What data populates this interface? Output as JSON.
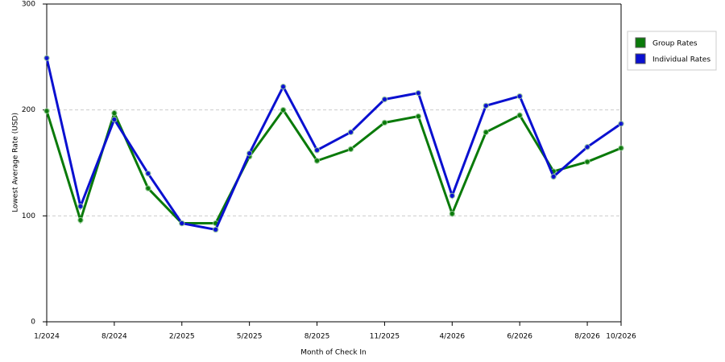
{
  "chart_data": {
    "type": "line",
    "x_label": "Month of Check In",
    "y_label": "Lowest Average Rate (USD)",
    "categories": [
      "1/2024",
      null,
      "8/2024",
      null,
      "2/2025",
      null,
      "5/2025",
      null,
      "8/2025",
      null,
      "11/2025",
      null,
      "4/2026",
      null,
      "6/2026",
      null,
      "8/2026",
      "10/2026"
    ],
    "series": [
      {
        "name": "Group Rates",
        "color": "#0a7a0a",
        "values": [
          199,
          96,
          197,
          126,
          93,
          93,
          156,
          200,
          152,
          163,
          188,
          194,
          102,
          179,
          195,
          142,
          151,
          164
        ]
      },
      {
        "name": "Individual Rates",
        "color": "#0a10d0",
        "values": [
          249,
          109,
          191,
          140,
          93,
          87,
          159,
          222,
          162,
          179,
          210,
          216,
          119,
          204,
          213,
          137,
          165,
          187
        ]
      }
    ],
    "ylim": [
      0,
      300
    ],
    "yticks": [
      0,
      100,
      200,
      300
    ],
    "grid": true,
    "legend": "right"
  }
}
